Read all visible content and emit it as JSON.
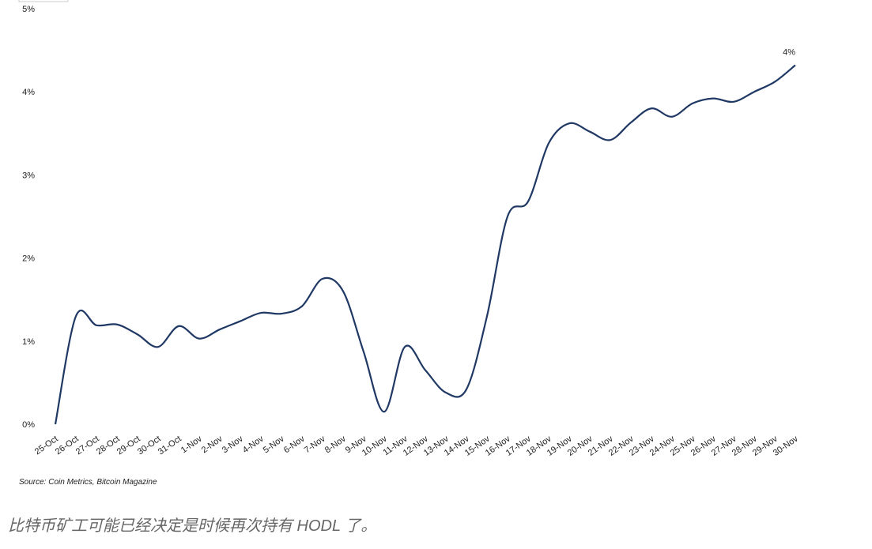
{
  "chart_data": {
    "type": "line",
    "categories": [
      "25-Oct",
      "26-Oct",
      "27-Oct",
      "28-Oct",
      "29-Oct",
      "30-Oct",
      "31-Oct",
      "1-Nov",
      "2-Nov",
      "3-Nov",
      "4-Nov",
      "5-Nov",
      "6-Nov",
      "7-Nov",
      "8-Nov",
      "9-Nov",
      "10-Nov",
      "11-Nov",
      "12-Nov",
      "13-Nov",
      "14-Nov",
      "15-Nov",
      "16-Nov",
      "17-Nov",
      "18-Nov",
      "19-Nov",
      "20-Nov",
      "21-Nov",
      "22-Nov",
      "23-Nov",
      "24-Nov",
      "25-Nov",
      "26-Nov",
      "27-Nov",
      "28-Nov",
      "29-Nov",
      "30-Nov"
    ],
    "values": [
      0,
      1.3,
      1.19,
      1.2,
      1.08,
      0.93,
      1.18,
      1.03,
      1.14,
      1.24,
      1.34,
      1.33,
      1.42,
      1.75,
      1.6,
      0.87,
      0.15,
      0.93,
      0.65,
      0.38,
      0.42,
      1.3,
      2.5,
      2.68,
      3.38,
      3.62,
      3.52,
      3.42,
      3.63,
      3.8,
      3.7,
      3.86,
      3.92,
      3.88,
      4.0,
      4.12,
      4.32
    ],
    "value_labels": [
      null,
      null,
      null,
      null,
      null,
      null,
      null,
      null,
      null,
      null,
      null,
      null,
      null,
      null,
      null,
      null,
      null,
      null,
      null,
      null,
      null,
      null,
      null,
      null,
      null,
      null,
      null,
      null,
      null,
      null,
      null,
      null,
      null,
      null,
      null,
      null,
      "4%"
    ],
    "color": "#1f3864",
    "ylim": [
      0,
      5
    ],
    "yticks": [
      {
        "value": 0,
        "label": "0%"
      },
      {
        "value": 1,
        "label": "1%"
      },
      {
        "value": 2,
        "label": "2%"
      },
      {
        "value": 3,
        "label": "3%"
      },
      {
        "value": 4,
        "label": "4%"
      },
      {
        "value": 5,
        "label": "5%"
      }
    ],
    "grid": false,
    "source": "Source: Coin Metrics, Bitcoin Magazine"
  },
  "caption": "比特币矿工可能已经决定是时候再次持有 HODL 了。"
}
